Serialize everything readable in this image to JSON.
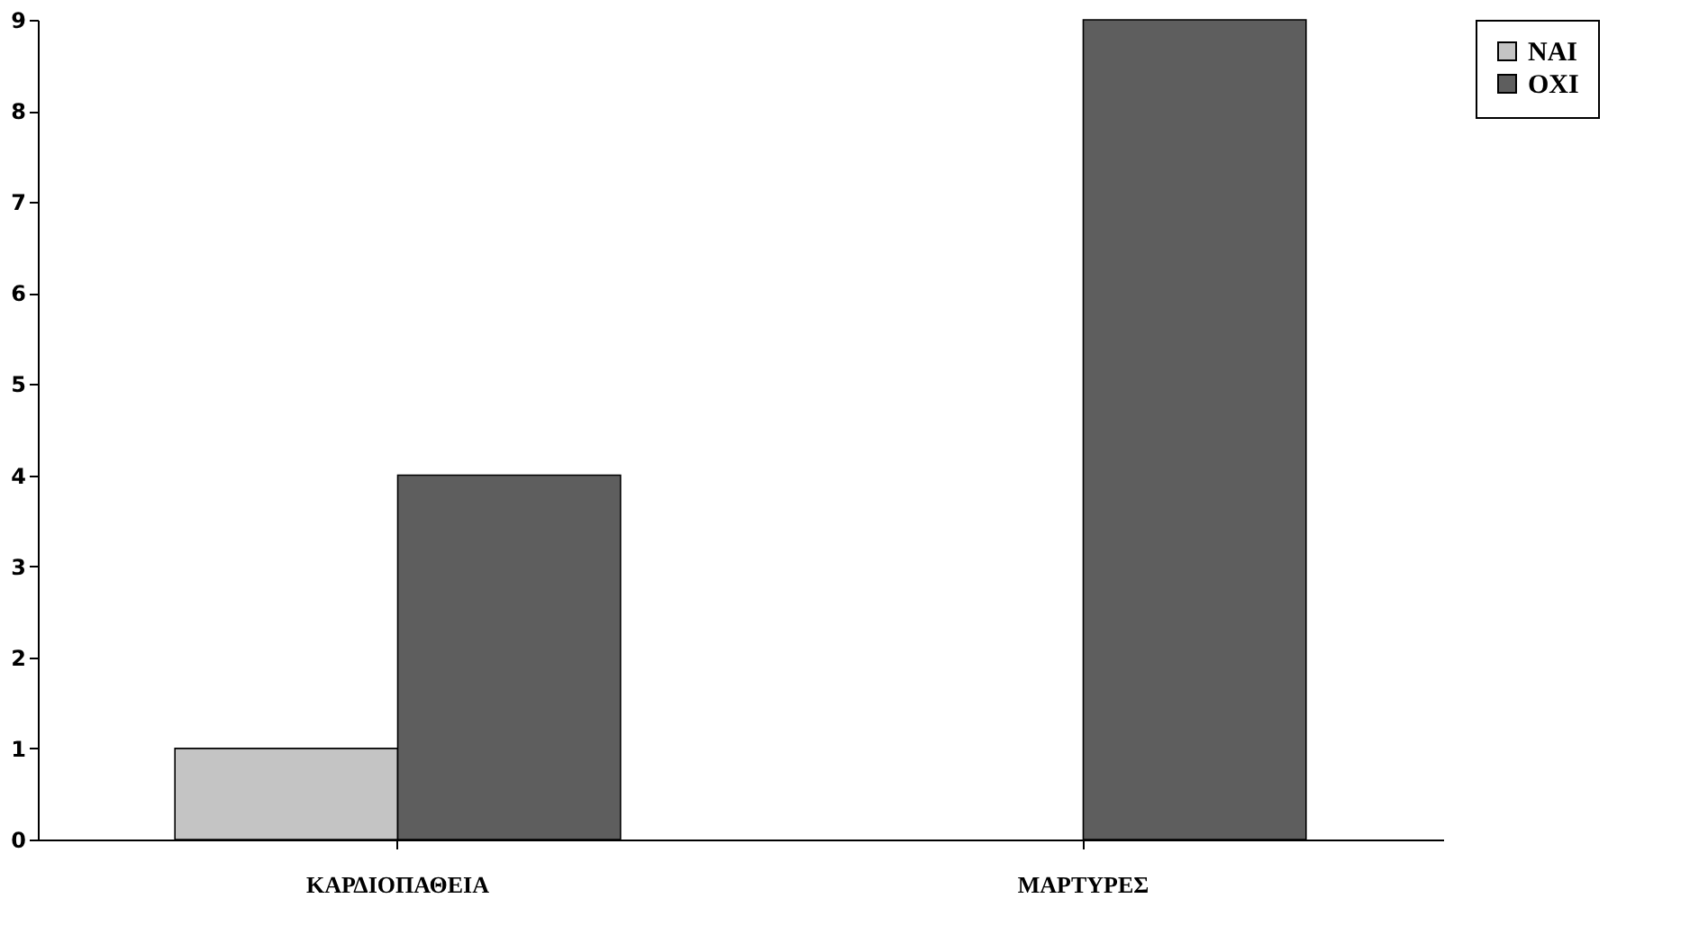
{
  "chart_data": {
    "type": "bar",
    "categories": [
      "ΚΑΡΔΙΟΠΑΘΕΙΑ",
      "ΜΑΡΤΥΡΕΣ"
    ],
    "series": [
      {
        "name": "ΝΑΙ",
        "color": "#c4c4c4",
        "values": [
          1,
          null
        ]
      },
      {
        "name": "ΟΧΙ",
        "color": "#5e5e5e",
        "values": [
          4,
          9
        ]
      }
    ],
    "ylim": [
      0,
      9
    ],
    "yticks": [
      0,
      1,
      2,
      3,
      4,
      5,
      6,
      7,
      8,
      9
    ],
    "grid": false,
    "legend": "right"
  }
}
